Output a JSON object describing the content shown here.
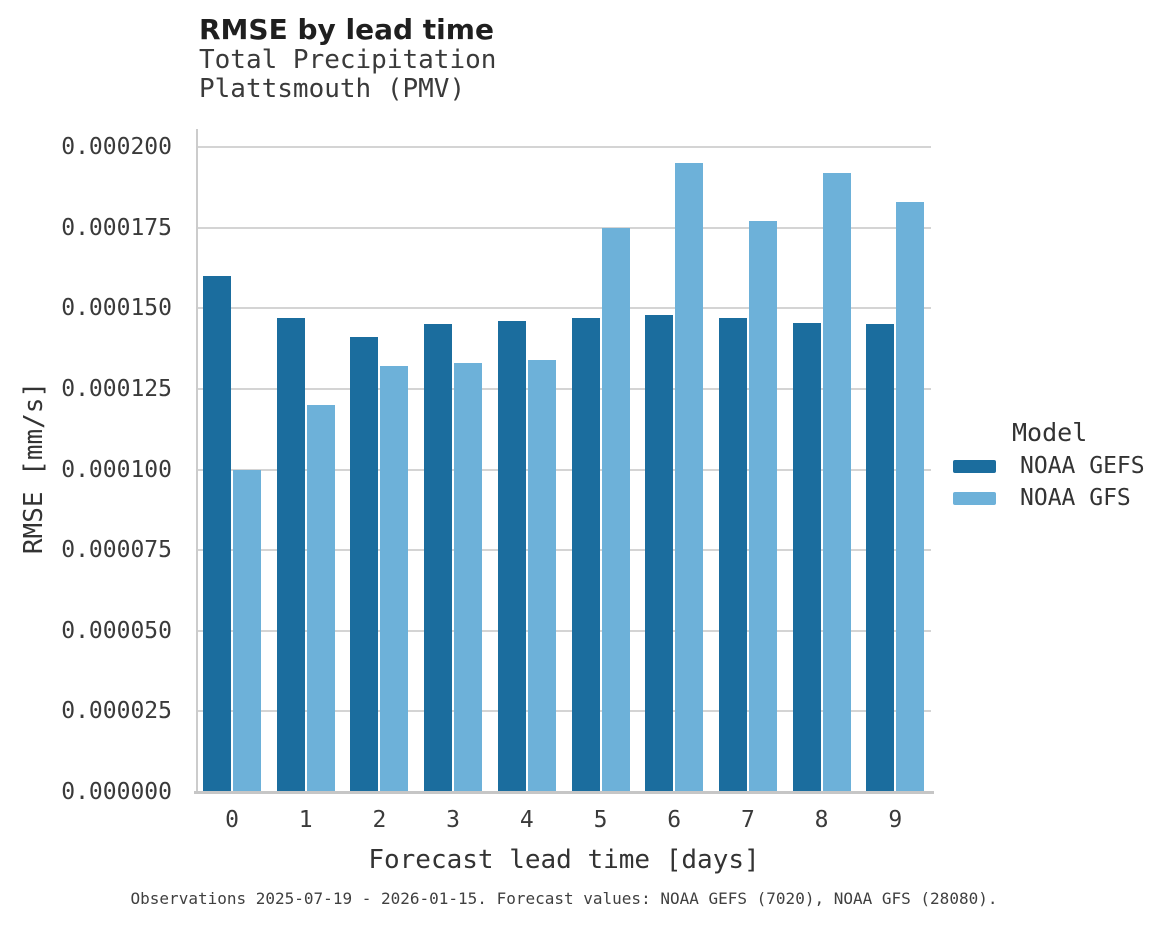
{
  "header": {
    "title": "RMSE by lead time",
    "subtitle_line1": "Total Precipitation",
    "subtitle_line2": "Plattsmouth (PMV)"
  },
  "legend": {
    "title": "Model"
  },
  "caption": "Observations 2025-07-19 - 2026-01-15. Forecast values: NOAA GEFS (7020), NOAA GFS (28080).",
  "colors": {
    "gefs_bar": "#1b6d9e",
    "gfs_bar": "#6db1d9",
    "gridline": "#d4d4d4",
    "text": "#3a3a3a"
  },
  "chart_data": {
    "type": "bar",
    "title": "RMSE by lead time",
    "subtitle": "Total Precipitation, Plattsmouth (PMV)",
    "xlabel": "Forecast lead time [days]",
    "ylabel": "RMSE [mm/s]",
    "categories": [
      "0",
      "1",
      "2",
      "3",
      "4",
      "5",
      "6",
      "7",
      "8",
      "9"
    ],
    "series": [
      {
        "name": "NOAA GEFS",
        "color": "#1b6d9e",
        "values": [
          0.00016,
          0.000147,
          0.000141,
          0.000145,
          0.000146,
          0.000147,
          0.000148,
          0.000147,
          0.0001455,
          0.000145
        ]
      },
      {
        "name": "NOAA GFS",
        "color": "#6db1d9",
        "values": [
          0.0001,
          0.00012,
          0.000132,
          0.000133,
          0.000134,
          0.000175,
          0.000195,
          0.000177,
          0.000192,
          0.000183
        ]
      }
    ],
    "ylim": [
      0,
      0.0002056
    ],
    "yticks": [
      {
        "value": 0.0,
        "label": "0.000000"
      },
      {
        "value": 2.5e-05,
        "label": "0.000025"
      },
      {
        "value": 5e-05,
        "label": "0.000050"
      },
      {
        "value": 7.5e-05,
        "label": "0.000075"
      },
      {
        "value": 0.0001,
        "label": "0.000100"
      },
      {
        "value": 0.000125,
        "label": "0.000125"
      },
      {
        "value": 0.00015,
        "label": "0.000150"
      },
      {
        "value": 0.000175,
        "label": "0.000175"
      },
      {
        "value": 0.0002,
        "label": "0.000200"
      }
    ],
    "grid": "horizontal",
    "legend_position": "right",
    "legend_title": "Model"
  }
}
